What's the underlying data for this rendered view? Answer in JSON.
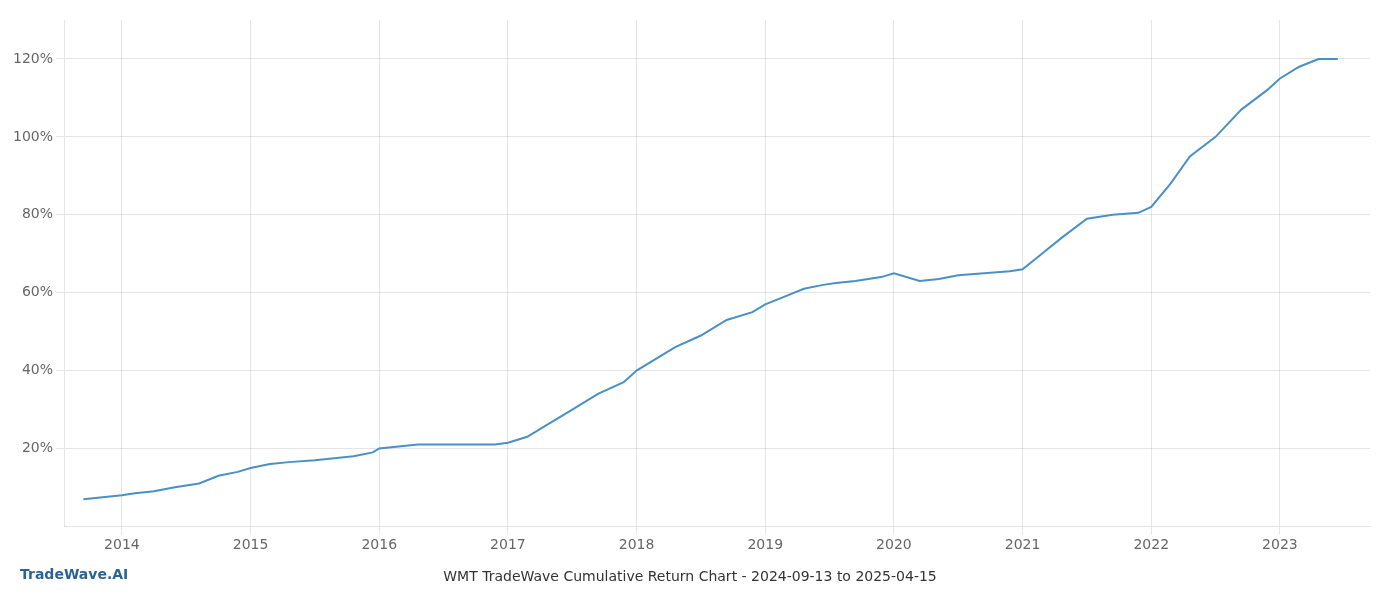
{
  "chart_data": {
    "type": "line",
    "title": "WMT TradeWave Cumulative Return Chart - 2024-09-13 to 2025-04-15",
    "annotation": "TradeWave.AI",
    "x": [
      2013.7,
      2014.0,
      2014.1,
      2014.25,
      2014.4,
      2014.6,
      2014.75,
      2014.9,
      2015.0,
      2015.15,
      2015.3,
      2015.5,
      2015.65,
      2015.8,
      2015.95,
      2016.0,
      2016.15,
      2016.3,
      2016.5,
      2016.7,
      2016.9,
      2017.0,
      2017.15,
      2017.3,
      2017.5,
      2017.7,
      2017.9,
      2018.0,
      2018.15,
      2018.3,
      2018.5,
      2018.7,
      2018.9,
      2019.0,
      2019.15,
      2019.3,
      2019.45,
      2019.55,
      2019.7,
      2019.9,
      2020.0,
      2020.2,
      2020.35,
      2020.5,
      2020.7,
      2020.9,
      2021.0,
      2021.15,
      2021.3,
      2021.5,
      2021.7,
      2021.9,
      2022.0,
      2022.15,
      2022.3,
      2022.5,
      2022.7,
      2022.9,
      2023.0,
      2023.15,
      2023.3,
      2023.45
    ],
    "values": [
      7,
      8,
      8.5,
      9,
      10,
      11,
      13,
      14,
      15,
      16,
      16.5,
      17,
      17.5,
      18,
      19,
      20,
      20.5,
      21,
      21,
      21,
      21,
      21.5,
      23,
      26,
      30,
      34,
      37,
      40,
      43,
      46,
      49,
      53,
      55,
      57,
      59,
      61,
      62,
      62.5,
      63,
      64,
      65,
      63,
      63.5,
      64.5,
      65,
      65.5,
      66,
      70,
      74,
      79,
      80,
      80.5,
      82,
      88,
      95,
      100,
      107,
      112,
      115,
      118,
      120,
      120
    ],
    "color": "#4a90c4",
    "xlim": [
      2013.55,
      2023.7
    ],
    "xticks": [
      2014,
      2015,
      2016,
      2017,
      2018,
      2019,
      2020,
      2021,
      2022,
      2023
    ],
    "ylim": [
      0,
      130
    ],
    "yticks": [
      {
        "value": 20,
        "label": "20%"
      },
      {
        "value": 40,
        "label": "40%"
      },
      {
        "value": 60,
        "label": "60%"
      },
      {
        "value": 80,
        "label": "80%"
      },
      {
        "value": 100,
        "label": "100%"
      },
      {
        "value": 120,
        "label": "120%"
      }
    ],
    "grid": true
  }
}
